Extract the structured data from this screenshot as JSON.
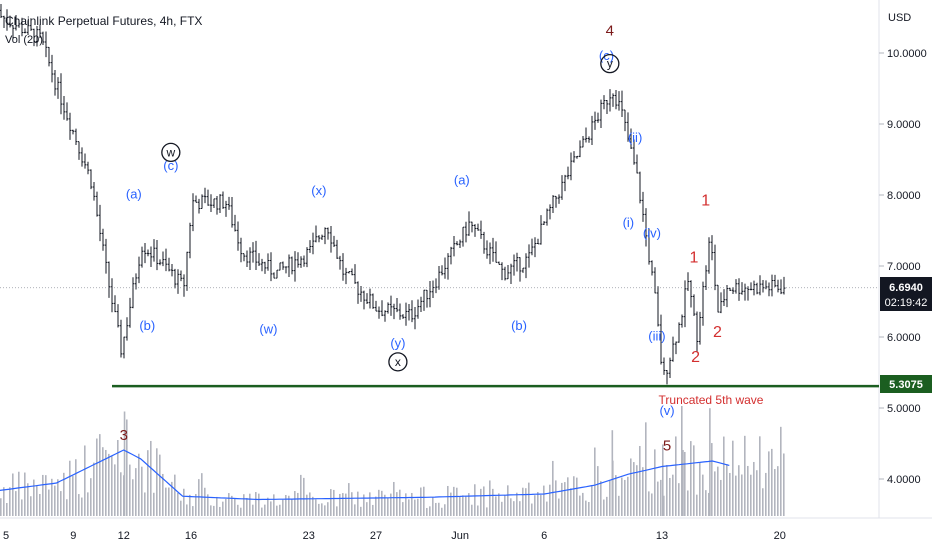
{
  "header": {
    "title": "Chainlink Perpetual Futures, 4h, FTX",
    "volume_label": "Vol (20)"
  },
  "price_axis": {
    "currency": "USD",
    "ticks": [
      "10.0000",
      "9.0000",
      "8.0000",
      "7.0000",
      "6.0000",
      "5.0000",
      "4.0000"
    ],
    "tick_values": [
      10,
      9,
      8,
      7,
      6,
      5,
      4
    ]
  },
  "time_axis": {
    "labels": [
      "5",
      "9",
      "12",
      "16",
      "23",
      "27",
      "Jun",
      "6",
      "13",
      "20"
    ],
    "label_days": [
      5,
      9,
      12,
      16,
      23,
      27,
      32,
      37,
      44,
      51
    ]
  },
  "price_badges": {
    "current_price": "6.6940",
    "countdown": "02:19:42",
    "support_price": "5.3075"
  },
  "annotations": {
    "truncated_note": "Truncated 5th wave"
  },
  "colors": {
    "wave_blue": "#2962ff",
    "wave_red": "#d32f2f",
    "wave_darkred": "#7b1a1a",
    "support_line": "#1b5e20",
    "candles": "#131722",
    "volume_bars": "#b2b5be",
    "volume_ma": "#2962ff",
    "badge_dark": "#131722"
  },
  "chart_data": {
    "type": "line",
    "title": "Chainlink Perpetual Futures, 4h, FTX",
    "y_range": [
      3.5,
      10.6
    ],
    "support_level": 5.3075,
    "current_price": 6.694,
    "price_path": [
      {
        "day": 4,
        "price": 10.6
      },
      {
        "day": 7,
        "price": 10.2
      },
      {
        "day": 8,
        "price": 9.5
      },
      {
        "day": 10,
        "price": 8.2
      },
      {
        "day": 11,
        "price": 6.8
      },
      {
        "day": 11.8,
        "price": 5.8
      },
      {
        "day": 13,
        "price": 7.3
      },
      {
        "day": 14,
        "price": 7.1
      },
      {
        "day": 15.5,
        "price": 6.7
      },
      {
        "day": 16,
        "price": 7.9
      },
      {
        "day": 18,
        "price": 7.9
      },
      {
        "day": 19,
        "price": 7.2
      },
      {
        "day": 21,
        "price": 6.9
      },
      {
        "day": 23,
        "price": 7.2
      },
      {
        "day": 24,
        "price": 7.6
      },
      {
        "day": 25,
        "price": 6.9
      },
      {
        "day": 27,
        "price": 6.4
      },
      {
        "day": 29,
        "price": 6.3
      },
      {
        "day": 30.5,
        "price": 6.8
      },
      {
        "day": 32.5,
        "price": 7.6
      },
      {
        "day": 34.5,
        "price": 6.9
      },
      {
        "day": 36,
        "price": 7.1
      },
      {
        "day": 37.5,
        "price": 7.9
      },
      {
        "day": 39,
        "price": 8.6
      },
      {
        "day": 41,
        "price": 9.5
      },
      {
        "day": 41.5,
        "price": 9.2
      },
      {
        "day": 42.5,
        "price": 8.2
      },
      {
        "day": 43.5,
        "price": 6.6
      },
      {
        "day": 44,
        "price": 5.4
      },
      {
        "day": 45,
        "price": 6.2
      },
      {
        "day": 45.5,
        "price": 6.8
      },
      {
        "day": 46,
        "price": 6.0
      },
      {
        "day": 46.8,
        "price": 7.4
      },
      {
        "day": 47.3,
        "price": 6.3
      },
      {
        "day": 47.8,
        "price": 6.7
      }
    ],
    "volume_ma_path": [
      {
        "day": 4,
        "value": 0.22
      },
      {
        "day": 8,
        "value": 0.3
      },
      {
        "day": 10,
        "value": 0.45
      },
      {
        "day": 12,
        "value": 0.6
      },
      {
        "day": 13,
        "value": 0.52
      },
      {
        "day": 15.5,
        "value": 0.18
      },
      {
        "day": 20,
        "value": 0.15
      },
      {
        "day": 30,
        "value": 0.17
      },
      {
        "day": 37,
        "value": 0.2
      },
      {
        "day": 40,
        "value": 0.28
      },
      {
        "day": 42,
        "value": 0.38
      },
      {
        "day": 44,
        "value": 0.45
      },
      {
        "day": 47,
        "value": 0.5
      },
      {
        "day": 48,
        "value": 0.46
      }
    ],
    "wave_labels": [
      {
        "text": "(a)",
        "day": 12.6,
        "price": 7.95,
        "style": "blue"
      },
      {
        "text": "(c)",
        "day": 14.8,
        "price": 8.35,
        "style": "blue"
      },
      {
        "text": "(b)",
        "day": 13.4,
        "price": 6.1,
        "style": "blue"
      },
      {
        "text": "(w)",
        "day": 20.6,
        "price": 6.05,
        "style": "blue"
      },
      {
        "text": "(x)",
        "day": 23.6,
        "price": 8.0,
        "style": "blue"
      },
      {
        "text": "(y)",
        "day": 28.3,
        "price": 5.85,
        "style": "blue"
      },
      {
        "text": "(a)",
        "day": 32.1,
        "price": 8.15,
        "style": "blue"
      },
      {
        "text": "(b)",
        "day": 35.5,
        "price": 6.1,
        "style": "blue"
      },
      {
        "text": "(c)",
        "day": 40.7,
        "price": 9.9,
        "style": "blue"
      },
      {
        "text": "(ii)",
        "day": 42.4,
        "price": 8.75,
        "style": "blue"
      },
      {
        "text": "(i)",
        "day": 42.0,
        "price": 7.55,
        "style": "blue"
      },
      {
        "text": "(iv)",
        "day": 43.4,
        "price": 7.4,
        "style": "blue"
      },
      {
        "text": "(iii)",
        "day": 43.7,
        "price": 5.95,
        "style": "blue"
      },
      {
        "text": "(v)",
        "day": 44.3,
        "price": 4.9,
        "style": "blue"
      },
      {
        "text": "1",
        "day": 46.6,
        "price": 7.85,
        "style": "red"
      },
      {
        "text": "1",
        "day": 45.9,
        "price": 7.05,
        "style": "red"
      },
      {
        "text": "2",
        "day": 47.3,
        "price": 6.0,
        "style": "red"
      },
      {
        "text": "2",
        "day": 46.0,
        "price": 5.65,
        "style": "red"
      },
      {
        "text": "4",
        "day": 40.9,
        "price": 10.25,
        "style": "darkred"
      },
      {
        "text": "3",
        "day": 12.0,
        "price": 4.55,
        "style": "darkred"
      },
      {
        "text": "5",
        "day": 44.3,
        "price": 4.4,
        "style": "darkred"
      }
    ],
    "circled_labels": [
      {
        "text": "w",
        "day": 14.8,
        "price": 8.6
      },
      {
        "text": "x",
        "day": 28.3,
        "price": 5.65
      },
      {
        "text": "y",
        "day": 40.9,
        "price": 9.85
      }
    ]
  }
}
